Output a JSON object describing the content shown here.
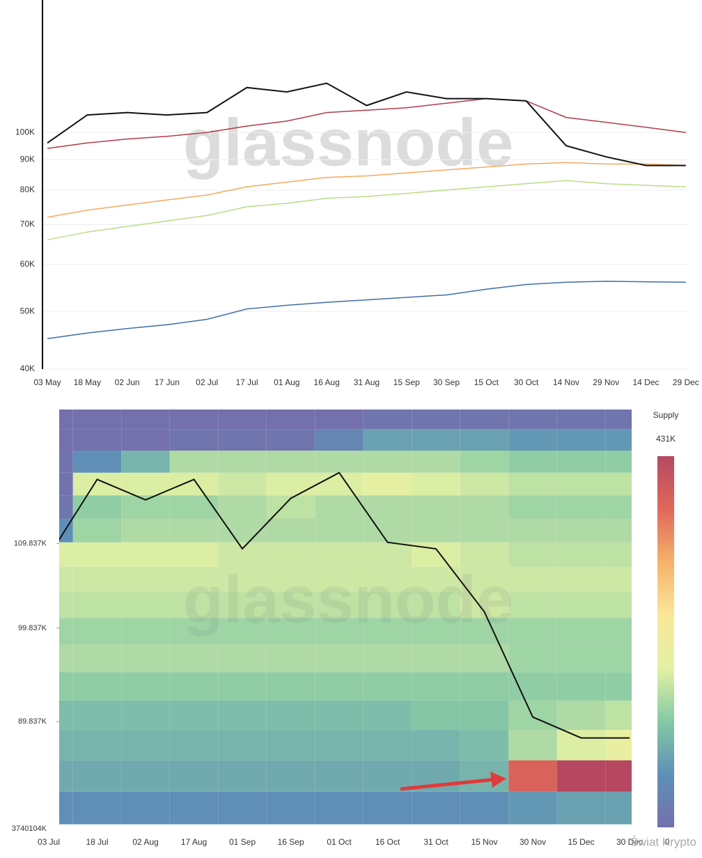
{
  "watermark": "glassnode",
  "credit": "Świat Krypto",
  "chart_data": [
    {
      "type": "line",
      "x": [
        "03 May",
        "18 May",
        "02 Jun",
        "17 Jun",
        "02 Jul",
        "17 Jul",
        "01 Aug",
        "16 Aug",
        "31 Aug",
        "15 Sep",
        "30 Sep",
        "15 Oct",
        "30 Oct",
        "14 Nov",
        "29 Nov",
        "14 Dec",
        "29 Dec"
      ],
      "log_scale": true,
      "grid": true,
      "ylim": [
        40000,
        167000
      ],
      "yticks": [
        {
          "value": 40000,
          "label": "40K"
        },
        {
          "value": 50000,
          "label": "50K"
        },
        {
          "value": 60000,
          "label": "60K"
        },
        {
          "value": 70000,
          "label": "70K"
        },
        {
          "value": 80000,
          "label": "80K"
        },
        {
          "value": 90000,
          "label": "90K"
        },
        {
          "value": 100000,
          "label": "100K"
        }
      ],
      "series": [
        {
          "color": "#b23a48",
          "values": [
            94000,
            96000,
            97500,
            98500,
            100000,
            102500,
            104500,
            108000,
            109000,
            110000,
            112000,
            114000,
            113000,
            106000,
            104000,
            102000,
            100000
          ]
        },
        {
          "color": "#f4a95b",
          "values": [
            72000,
            74000,
            75500,
            77000,
            78500,
            81000,
            82500,
            84000,
            84500,
            85500,
            86500,
            87500,
            88500,
            89000,
            88500,
            88500,
            88000
          ]
        },
        {
          "color": "#b9dd85",
          "values": [
            66000,
            68000,
            69500,
            71000,
            72500,
            75000,
            76000,
            77500,
            78000,
            79000,
            80000,
            81000,
            82000,
            83000,
            82000,
            81500,
            81000
          ]
        },
        {
          "color": "#3d6ea8",
          "values": [
            45000,
            46000,
            46800,
            47500,
            48500,
            50500,
            51200,
            51800,
            52300,
            52800,
            53300,
            54500,
            55500,
            56000,
            56200,
            56100,
            56000
          ]
        },
        {
          "color": "#111111",
          "values": [
            96000,
            107000,
            108000,
            107000,
            108000,
            119000,
            117000,
            121000,
            111000,
            117000,
            114000,
            114000,
            113000,
            95000,
            91000,
            88000,
            88000
          ]
        }
      ]
    },
    {
      "type": "heatmap",
      "x": [
        "03 Jul",
        "18 Jul",
        "02 Aug",
        "17 Aug",
        "01 Sep",
        "16 Sep",
        "01 Oct",
        "16 Oct",
        "31 Oct",
        "15 Nov",
        "30 Nov",
        "15 Dec",
        "30 Dec"
      ],
      "log_scale": true,
      "ylim": [
        79600,
        127800
      ],
      "yticks": [
        {
          "value": 89837,
          "label": "89.837K"
        },
        {
          "value": 99837,
          "label": "99.837K"
        },
        {
          "value": 109837,
          "label": "109.837K"
        }
      ],
      "y_bottom_label": "3740104K",
      "price_bins": [
        80000,
        83000,
        86000,
        89000,
        92000,
        95000,
        98000,
        101000,
        104000,
        107000,
        110000,
        113000,
        116000,
        119000,
        122000,
        125000,
        128000
      ],
      "z": [
        [
          60,
          60,
          60,
          60,
          60,
          60,
          60,
          60,
          60,
          60,
          70,
          80,
          80
        ],
        [
          90,
          90,
          90,
          90,
          90,
          90,
          90,
          90,
          90,
          100,
          380,
          431,
          431
        ],
        [
          100,
          100,
          100,
          100,
          100,
          100,
          100,
          100,
          100,
          110,
          150,
          180,
          200
        ],
        [
          110,
          110,
          110,
          110,
          110,
          110,
          110,
          110,
          120,
          120,
          140,
          150,
          160
        ],
        [
          130,
          130,
          130,
          130,
          130,
          130,
          130,
          130,
          130,
          130,
          130,
          130,
          130
        ],
        [
          150,
          150,
          150,
          150,
          150,
          150,
          150,
          150,
          150,
          150,
          140,
          140,
          140
        ],
        [
          140,
          140,
          140,
          140,
          140,
          140,
          140,
          140,
          140,
          140,
          140,
          140,
          140
        ],
        [
          160,
          160,
          160,
          160,
          160,
          160,
          160,
          160,
          160,
          170,
          160,
          160,
          160
        ],
        [
          170,
          170,
          170,
          170,
          170,
          170,
          170,
          170,
          170,
          170,
          170,
          170,
          170
        ],
        [
          180,
          180,
          180,
          180,
          170,
          170,
          170,
          170,
          180,
          170,
          160,
          160,
          160
        ],
        [
          60,
          140,
          150,
          150,
          150,
          150,
          150,
          150,
          150,
          150,
          150,
          150,
          150
        ],
        [
          10,
          130,
          140,
          140,
          150,
          160,
          150,
          150,
          150,
          150,
          140,
          140,
          140
        ],
        [
          5,
          180,
          180,
          180,
          170,
          180,
          180,
          190,
          180,
          170,
          160,
          160,
          160
        ],
        [
          5,
          60,
          100,
          150,
          150,
          150,
          150,
          150,
          150,
          140,
          130,
          130,
          130
        ],
        [
          0,
          0,
          0,
          10,
          10,
          10,
          40,
          80,
          80,
          80,
          70,
          70,
          70
        ],
        [
          0,
          0,
          0,
          0,
          0,
          0,
          0,
          10,
          10,
          10,
          10,
          10,
          10
        ]
      ],
      "colorscale": [
        "#7470ad",
        "#5e90b6",
        "#86c9a5",
        "#e3f1a4",
        "#fbe79a",
        "#f5b26b",
        "#e0685a",
        "#b64761"
      ],
      "colorbar": {
        "title": "Supply",
        "max": {
          "value": 431,
          "label": "431K"
        },
        "min": 0
      },
      "line": {
        "color": "#111111",
        "values": [
          108300,
          118100,
          115400,
          118100,
          109200,
          115600,
          119000,
          110000,
          109200,
          101700,
          90300,
          88200,
          88200
        ]
      }
    }
  ]
}
